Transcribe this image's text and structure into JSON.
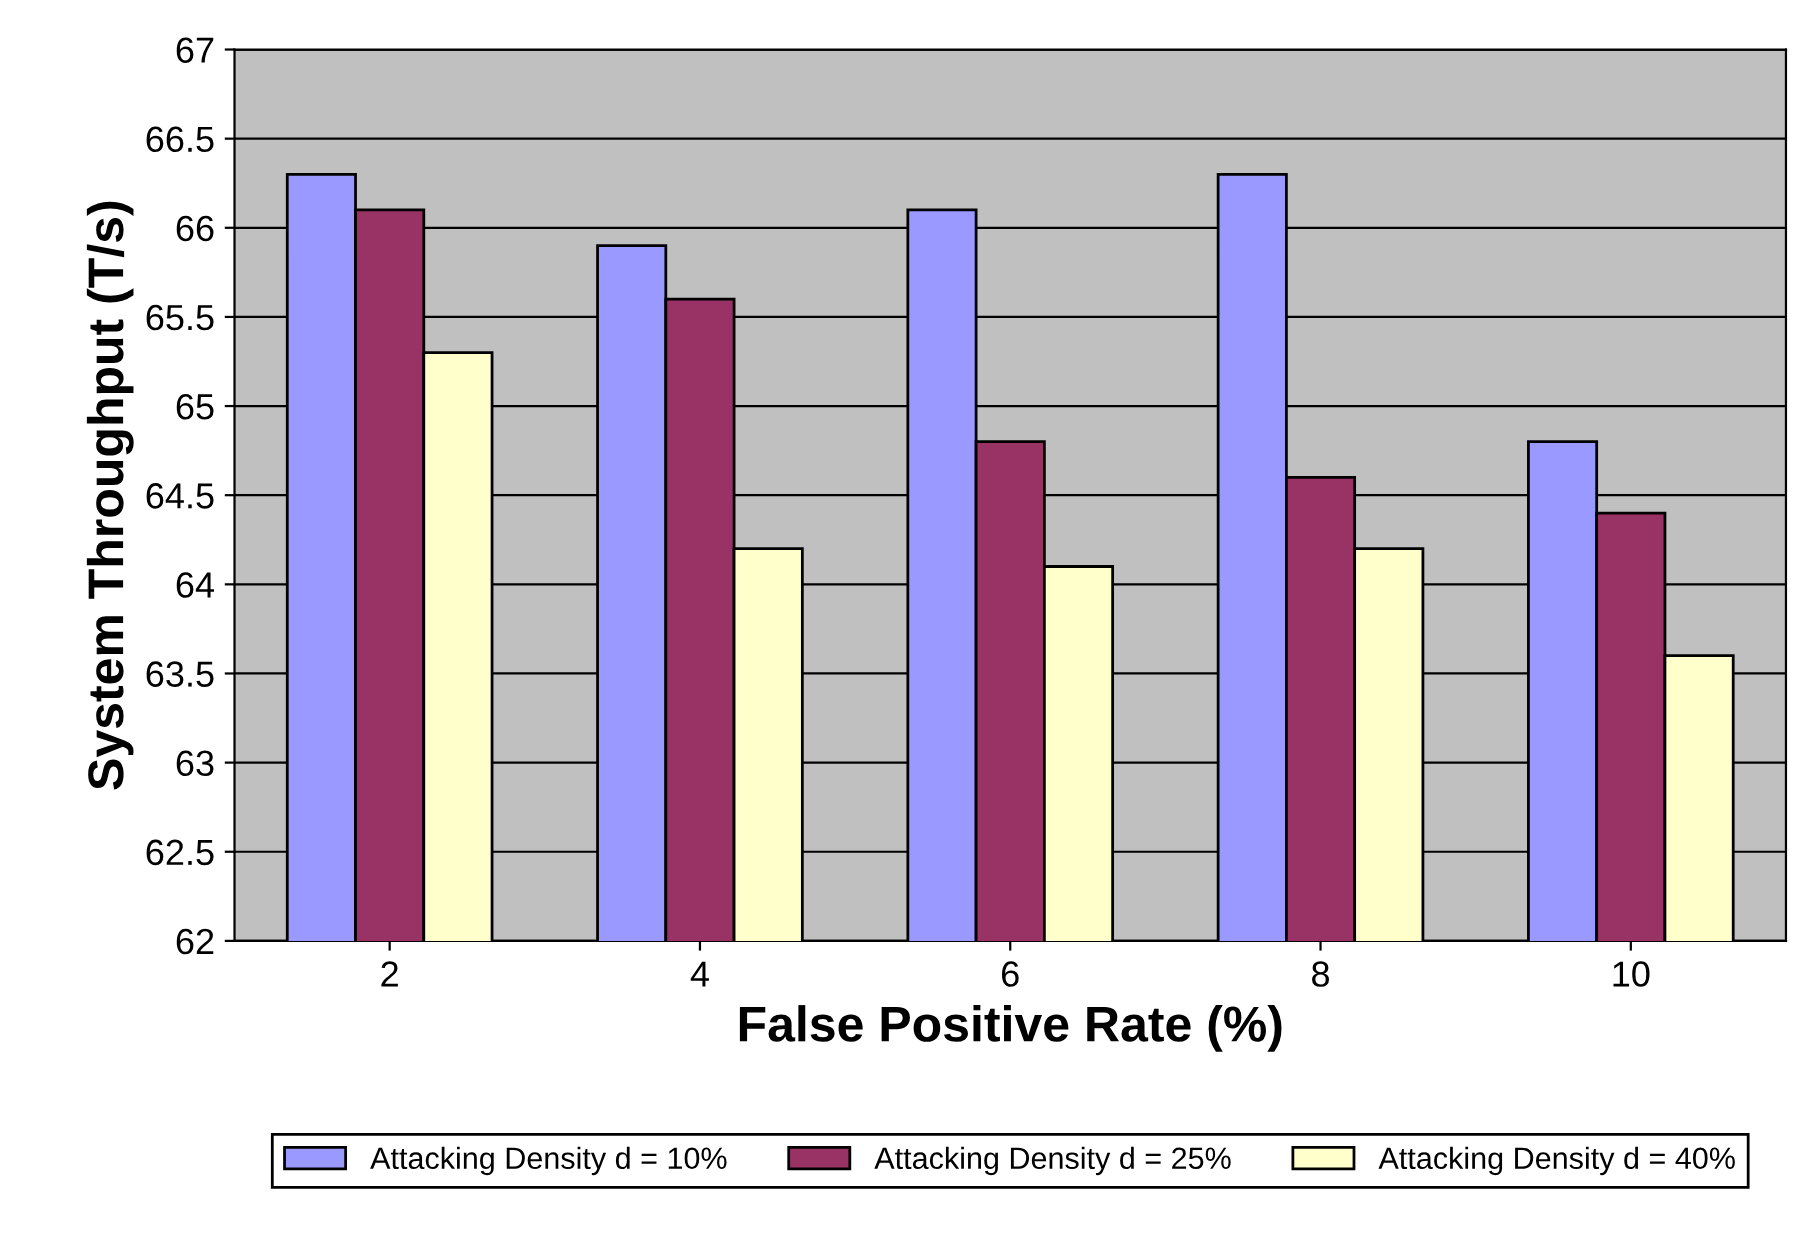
{
  "chart_data": {
    "type": "bar",
    "xlabel": "False Positive Rate (%)",
    "ylabel": "System Throughput (T/s)",
    "categories": [
      "2",
      "4",
      "6",
      "8",
      "10"
    ],
    "series": [
      {
        "name": "Attacking Density d = 10%",
        "color": "#9999ff",
        "values": [
          66.3,
          65.9,
          66.1,
          66.3,
          64.8
        ]
      },
      {
        "name": "Attacking Density d = 25%",
        "color": "#993366",
        "values": [
          66.1,
          65.6,
          64.8,
          64.6,
          64.4
        ]
      },
      {
        "name": "Attacking Density d = 40%",
        "color": "#ffffcc",
        "values": [
          65.3,
          64.2,
          64.1,
          64.2,
          63.6
        ]
      }
    ],
    "ylim": [
      62,
      67
    ],
    "yticks": [
      62,
      62.5,
      63,
      63.5,
      64,
      64.5,
      65,
      65.5,
      66,
      66.5,
      67
    ],
    "grid": "y",
    "legend": "bottom"
  }
}
